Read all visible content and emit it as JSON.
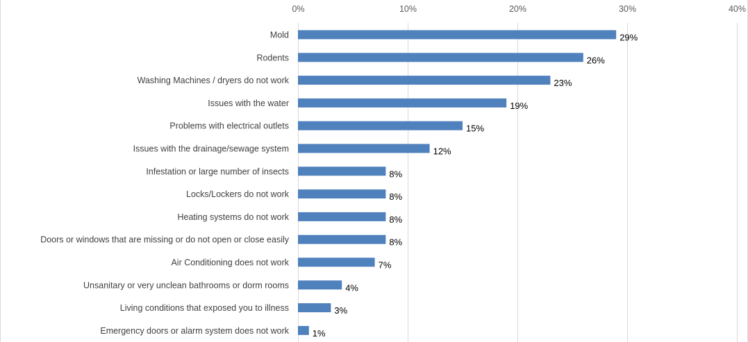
{
  "chart_data": {
    "type": "bar",
    "orientation": "horizontal",
    "categories": [
      "Mold",
      "Rodents",
      "Washing Machines / dryers do not work",
      "Issues with the water",
      "Problems with electrical outlets",
      "Issues with the drainage/sewage system",
      "Infestation or large number of insects",
      "Locks/Lockers do not work",
      "Heating systems do not work",
      "Doors or windows that are missing or do not open or close easily",
      "Air Conditioning does not work",
      "Unsanitary or very unclean bathrooms or dorm rooms",
      "Living conditions that exposed you to illness",
      "Emergency doors or alarm system does not work"
    ],
    "values": [
      29,
      26,
      23,
      19,
      15,
      12,
      8,
      8,
      8,
      8,
      7,
      4,
      3,
      1
    ],
    "data_labels": [
      "29%",
      "26%",
      "23%",
      "19%",
      "15%",
      "12%",
      "8%",
      "8%",
      "8%",
      "8%",
      "7%",
      "4%",
      "3%",
      "1%"
    ],
    "xlim": [
      0,
      40
    ],
    "x_ticks": [
      0,
      10,
      20,
      30,
      40
    ],
    "x_tick_labels": [
      "0%",
      "10%",
      "20%",
      "30%",
      "40%"
    ],
    "x_axis_position": "top",
    "grid": true,
    "legend": "none",
    "bar_color": "#4f81bd",
    "title": "",
    "xlabel": "",
    "ylabel": ""
  }
}
